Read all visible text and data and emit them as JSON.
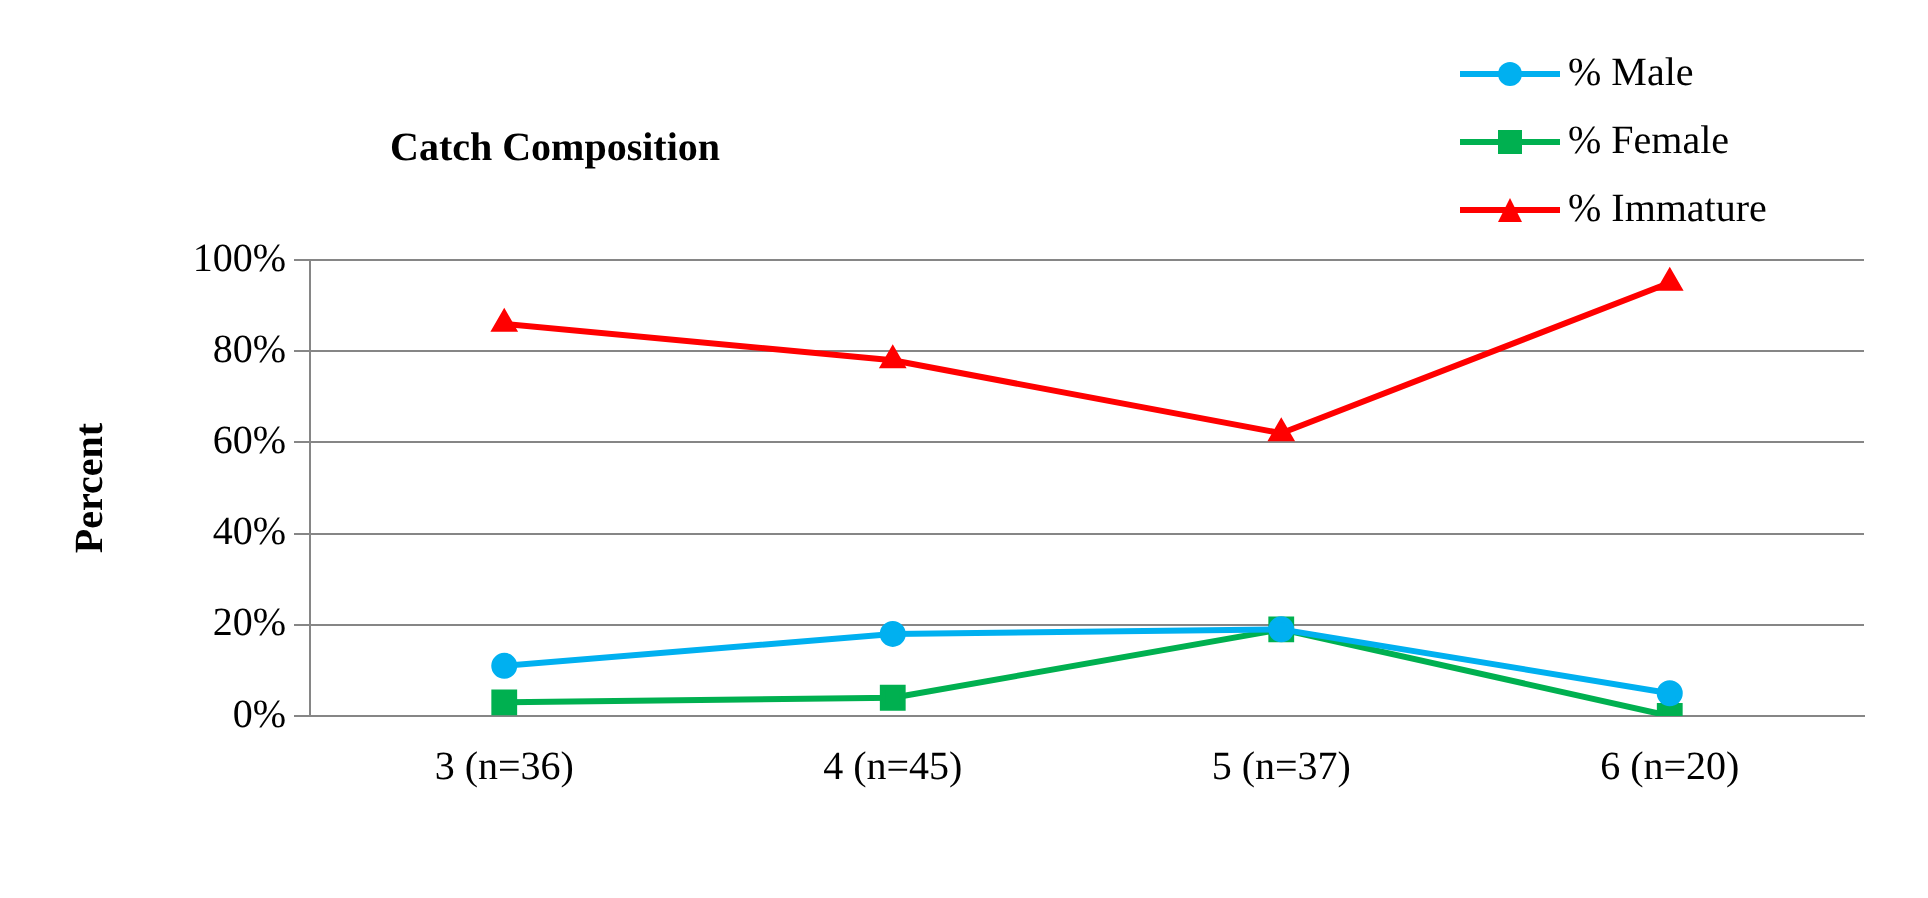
{
  "chart_data": {
    "type": "line",
    "title": "Catch Composition",
    "ylabel": "Percent",
    "categories": [
      "3 (n=36)",
      "4 (n=45)",
      "5 (n=37)",
      "6 (n=20)"
    ],
    "series": [
      {
        "name": "% Male",
        "color": "#00b0f0",
        "marker": "circle",
        "values": [
          11,
          18,
          19,
          5
        ]
      },
      {
        "name": "% Female",
        "color": "#00b050",
        "marker": "square",
        "values": [
          3,
          4,
          19,
          0
        ]
      },
      {
        "name": "% Immature",
        "color": "#ff0000",
        "marker": "triangle",
        "values": [
          86,
          78,
          62,
          95
        ]
      }
    ],
    "ylim": [
      0,
      100
    ],
    "yticks": [
      {
        "value": 0,
        "label": "0%"
      },
      {
        "value": 20,
        "label": "20%"
      },
      {
        "value": 40,
        "label": "40%"
      },
      {
        "value": 60,
        "label": "60%"
      },
      {
        "value": 80,
        "label": "80%"
      },
      {
        "value": 100,
        "label": "100%"
      }
    ],
    "grid": "y",
    "legend": "top right",
    "line_style": "solid"
  }
}
